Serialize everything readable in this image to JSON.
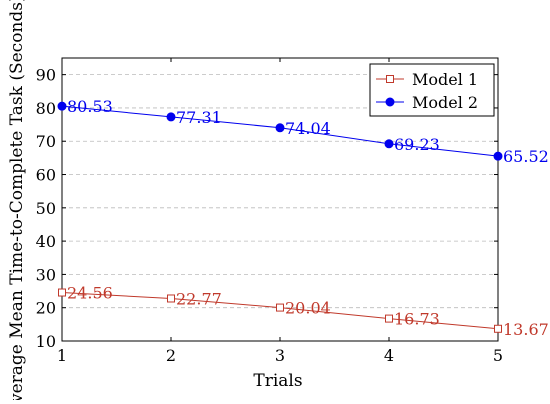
{
  "chart_data": {
    "type": "line",
    "xlabel": "Trials",
    "ylabel": "Average Mean Time-to-Complete Task (Seconds)",
    "x": [
      1,
      2,
      3,
      4,
      5
    ],
    "xlim": [
      1,
      5
    ],
    "ylim": [
      10,
      95
    ],
    "xticks": [
      1,
      2,
      3,
      4,
      5
    ],
    "yticks": [
      10,
      20,
      30,
      40,
      50,
      60,
      70,
      80,
      90
    ],
    "grid": "horizontal-dashed",
    "legend_position": "top-right",
    "series": [
      {
        "name": "Model 1",
        "values": [
          24.56,
          22.77,
          20.04,
          16.73,
          13.67
        ],
        "labels": [
          "24.56",
          "22.77",
          "20.04",
          "16.73",
          "13.67"
        ],
        "color": "#c0392b",
        "marker": "square-open"
      },
      {
        "name": "Model 2",
        "values": [
          80.53,
          77.31,
          74.04,
          69.23,
          65.52
        ],
        "labels": [
          "80.53",
          "77.31",
          "74.04",
          "69.23",
          "65.52"
        ],
        "color": "#0000ee",
        "marker": "circle-filled"
      }
    ]
  }
}
